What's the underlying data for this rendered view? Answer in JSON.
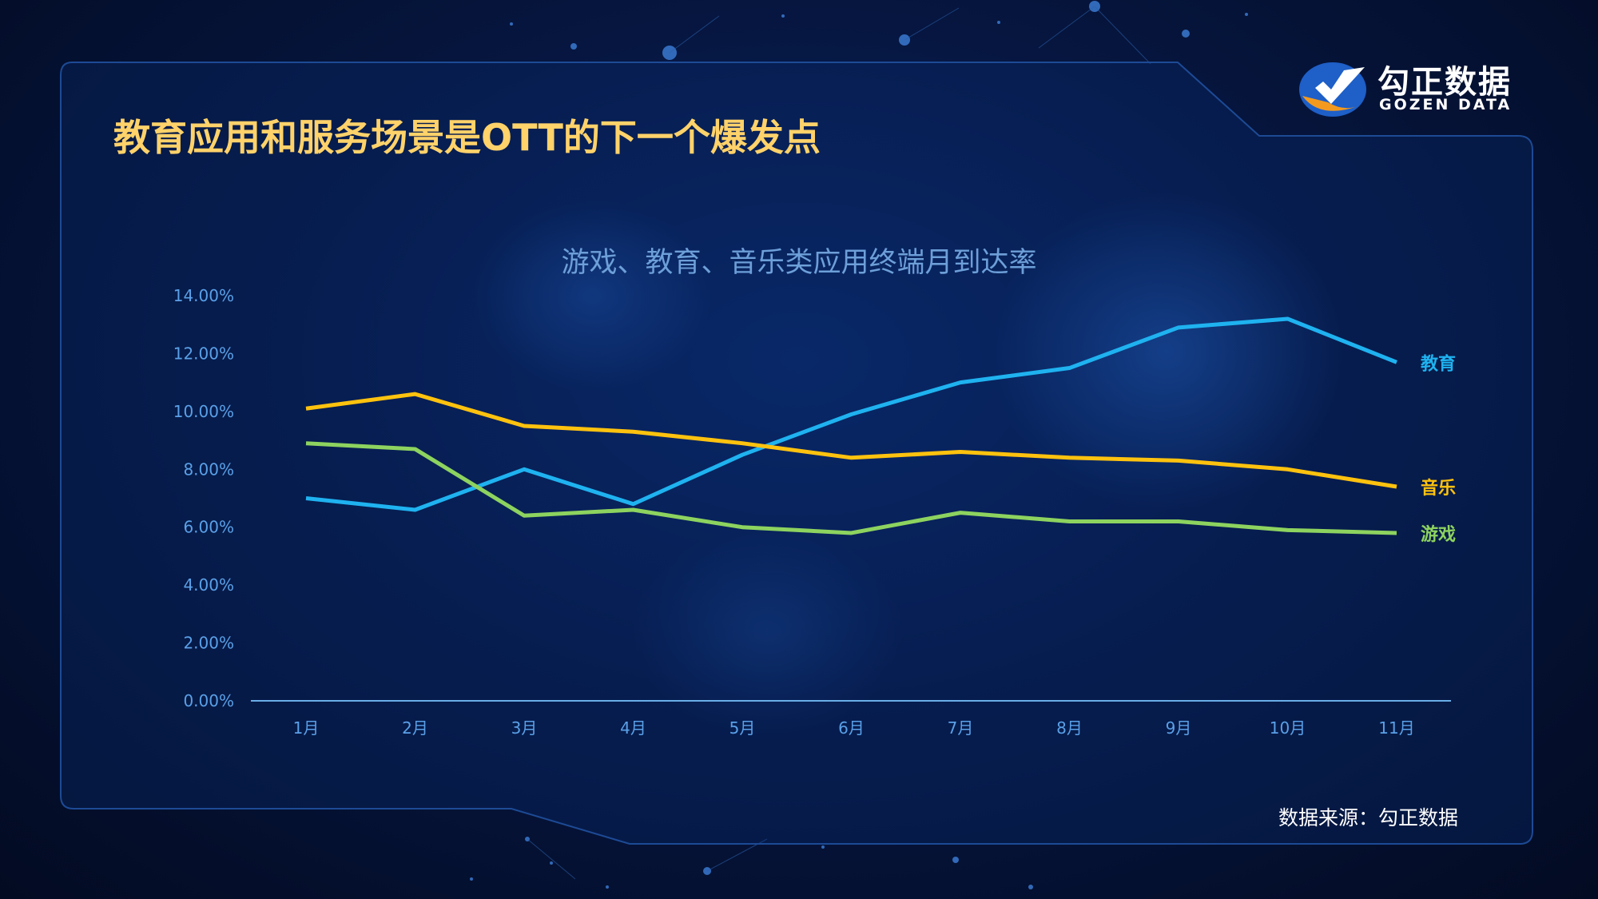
{
  "header": {
    "title": "教育应用和服务场景是OTT的下一个爆发点",
    "logo_cn": "勾正数据",
    "logo_en": "GOZEN DATA"
  },
  "footer": {
    "source": "数据来源：勾正数据"
  },
  "colors": {
    "title": "#ffd26a",
    "education": "#1fb2f0",
    "music": "#ffc20e",
    "games": "#8dd35f",
    "axis_text": "#5aa0e8",
    "chart_title": "#6d9fd8"
  },
  "chart_data": {
    "type": "line",
    "title": "游戏、教育、音乐类应用终端月到达率",
    "categories": [
      "1月",
      "2月",
      "3月",
      "4月",
      "5月",
      "6月",
      "7月",
      "8月",
      "9月",
      "10月",
      "11月"
    ],
    "y_ticks": [
      "0.00%",
      "2.00%",
      "4.00%",
      "6.00%",
      "8.00%",
      "10.00%",
      "12.00%",
      "14.00%"
    ],
    "ylim": [
      0,
      14
    ],
    "grid": false,
    "legend": "line-end labels",
    "series": [
      {
        "name": "教育",
        "color": "#1fb2f0",
        "values": [
          7.0,
          6.6,
          8.0,
          6.8,
          8.5,
          9.9,
          11.0,
          11.5,
          12.9,
          13.2,
          11.7
        ]
      },
      {
        "name": "音乐",
        "color": "#ffc20e",
        "values": [
          10.1,
          10.6,
          9.5,
          9.3,
          8.9,
          8.4,
          8.6,
          8.4,
          8.3,
          8.0,
          7.4
        ]
      },
      {
        "name": "游戏",
        "color": "#8dd35f",
        "values": [
          8.9,
          8.7,
          6.4,
          6.6,
          6.0,
          5.8,
          6.5,
          6.2,
          6.2,
          5.9,
          5.8
        ]
      }
    ]
  }
}
